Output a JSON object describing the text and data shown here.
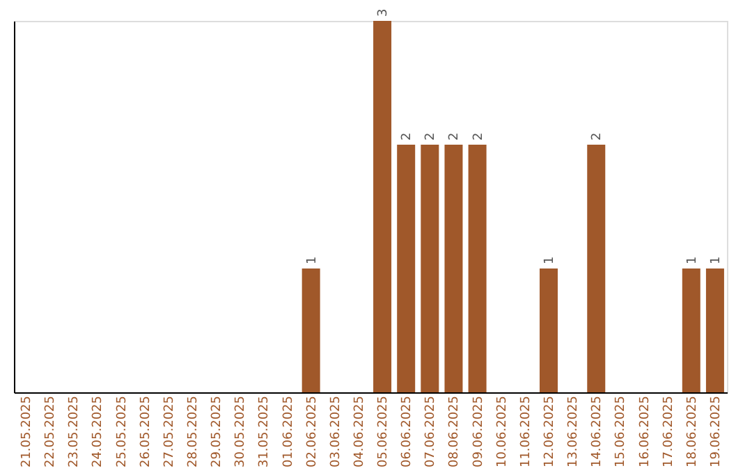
{
  "chart_data": {
    "type": "bar",
    "categories": [
      "21.05.2025",
      "22.05.2025",
      "23.05.2025",
      "24.05.2025",
      "25.05.2025",
      "26.05.2025",
      "27.05.2025",
      "28.05.2025",
      "29.05.2025",
      "30.05.2025",
      "31.05.2025",
      "01.06.2025",
      "02.06.2025",
      "03.06.2025",
      "04.06.2025",
      "05.06.2025",
      "06.06.2025",
      "07.06.2025",
      "08.06.2025",
      "09.06.2025",
      "10.06.2025",
      "11.06.2025",
      "12.06.2025",
      "13.06.2025",
      "14.06.2025",
      "15.06.2025",
      "16.06.2025",
      "17.06.2025",
      "18.06.2025",
      "19.06.2025"
    ],
    "values": [
      null,
      null,
      null,
      null,
      null,
      null,
      null,
      null,
      null,
      null,
      null,
      null,
      1,
      null,
      null,
      3,
      2,
      2,
      2,
      2,
      null,
      null,
      1,
      null,
      2,
      null,
      null,
      null,
      1,
      1
    ],
    "data_labels": true,
    "color": "#a0582a",
    "tick_labels": "x",
    "grid": false
  }
}
